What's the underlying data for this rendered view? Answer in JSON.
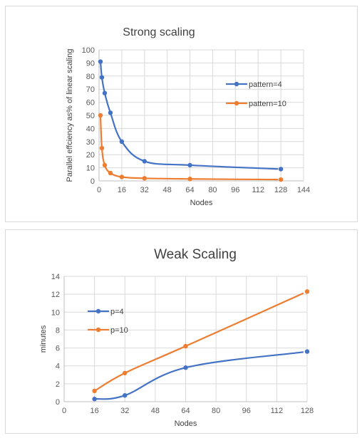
{
  "chart_data": [
    {
      "type": "line",
      "title": "Strong scaling",
      "xlabel": "Nodes",
      "ylabel": "Parallel effciency as% of linear scaling",
      "xlim": [
        0,
        144
      ],
      "ylim": [
        0,
        100
      ],
      "x_ticks": [
        0,
        16,
        32,
        48,
        64,
        80,
        96,
        112,
        128,
        144
      ],
      "y_ticks": [
        0,
        10,
        20,
        30,
        40,
        50,
        60,
        70,
        80,
        90,
        100
      ],
      "grid": true,
      "legend_position": "right",
      "smooth": true,
      "series": [
        {
          "name": "pattern=4",
          "color": "#4472c4",
          "x": [
            1,
            2,
            4,
            8,
            16,
            32,
            64,
            128
          ],
          "y": [
            91,
            79,
            67,
            52,
            30,
            15,
            12,
            9
          ]
        },
        {
          "name": "pattern=10",
          "color": "#ed7d31",
          "x": [
            1,
            2,
            4,
            8,
            16,
            32,
            64,
            128
          ],
          "y": [
            50,
            25,
            12,
            6,
            3,
            2,
            1.5,
            1
          ]
        }
      ]
    },
    {
      "type": "line",
      "title": "Weak Scaling",
      "xlabel": "Nodes",
      "ylabel": "minutes",
      "xlim": [
        0,
        128
      ],
      "ylim": [
        0,
        14
      ],
      "x_ticks": [
        0,
        16,
        32,
        48,
        64,
        80,
        96,
        112,
        128
      ],
      "y_ticks": [
        0,
        2,
        4,
        6,
        8,
        10,
        12,
        14
      ],
      "grid": true,
      "legend_position": "left",
      "smooth": true,
      "series": [
        {
          "name": "p=4",
          "color": "#4472c4",
          "x": [
            16,
            32,
            64,
            128
          ],
          "y": [
            0.3,
            0.7,
            3.8,
            5.6
          ]
        },
        {
          "name": "p=10",
          "color": "#ed7d31",
          "x": [
            16,
            32,
            64,
            128
          ],
          "y": [
            1.2,
            3.2,
            6.2,
            12.3
          ]
        }
      ]
    }
  ]
}
